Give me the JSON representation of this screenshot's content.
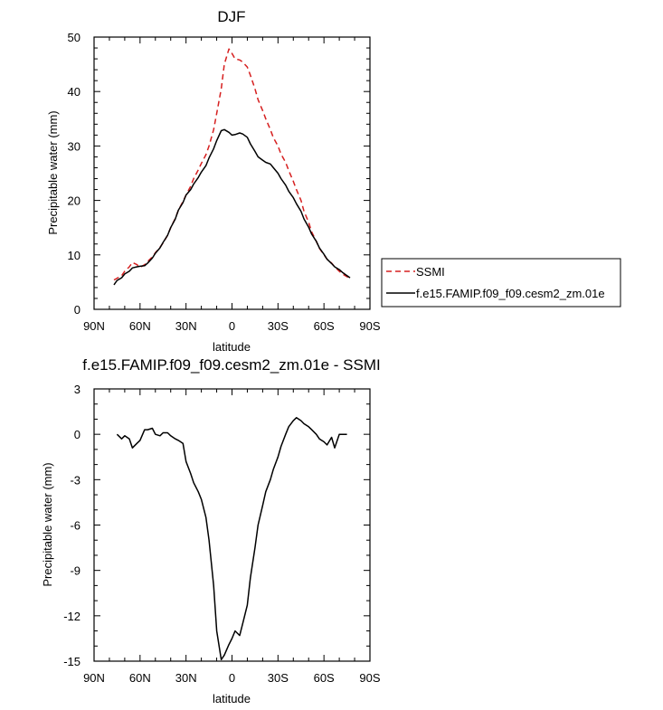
{
  "chart_data": [
    {
      "type": "line",
      "title": "DJF",
      "xlabel": "latitude",
      "ylabel": "Precipitable water (mm)",
      "xlim": [
        -90,
        90
      ],
      "ylim": [
        0,
        50
      ],
      "xticks": [
        -90,
        -60,
        -30,
        0,
        30,
        60,
        90
      ],
      "xticklabels": [
        "90N",
        "60N",
        "30N",
        "0",
        "30S",
        "60S",
        "90S"
      ],
      "yticks": [
        0,
        10,
        20,
        30,
        40,
        50
      ],
      "yticklabels": [
        "0",
        "10",
        "20",
        "30",
        "40",
        "50"
      ],
      "legend": "right-bottom",
      "grid": false,
      "series": [
        {
          "name": "SSMI",
          "color": "#d62020",
          "dash": "dashed",
          "x": [
            -77,
            -75,
            -72,
            -70,
            -67,
            -65,
            -62,
            -60,
            -57,
            -55,
            -52,
            -50,
            -47,
            -45,
            -42,
            -40,
            -37,
            -35,
            -32,
            -30,
            -27,
            -25,
            -22,
            -20,
            -17,
            -15,
            -12,
            -10,
            -7,
            -5,
            -2,
            0,
            2,
            5,
            7,
            10,
            12,
            15,
            17,
            20,
            22,
            25,
            27,
            30,
            32,
            35,
            37,
            40,
            42,
            45,
            47,
            50,
            52,
            55,
            57,
            60,
            62,
            65,
            67,
            70,
            72,
            75,
            77
          ],
          "y": [
            5.4,
            5.7,
            6.2,
            7.0,
            7.8,
            8.6,
            8.2,
            7.7,
            8.2,
            8.8,
            9.6,
            10.4,
            11.4,
            12.2,
            13.6,
            15.0,
            16.7,
            18.2,
            19.8,
            21.0,
            22.6,
            24.0,
            25.6,
            26.8,
            28.4,
            30.0,
            33.0,
            36.0,
            40.5,
            45.0,
            47.8,
            47.0,
            46.0,
            45.8,
            45.4,
            44.5,
            43.0,
            40.5,
            38.5,
            36.5,
            35.0,
            33.0,
            31.5,
            30.0,
            28.5,
            27.0,
            25.5,
            23.5,
            22.0,
            20.0,
            18.0,
            16.0,
            14.2,
            12.5,
            11.2,
            10.0,
            9.2,
            8.5,
            7.8,
            7.0,
            6.5,
            6.0,
            5.6
          ]
        },
        {
          "name": "f.e15.FAMIP.f09_f09.cesm2_zm.01e",
          "color": "#000000",
          "dash": "solid",
          "x": [
            -77,
            -75,
            -72,
            -70,
            -67,
            -65,
            -62,
            -60,
            -57,
            -55,
            -52,
            -50,
            -47,
            -45,
            -42,
            -40,
            -37,
            -35,
            -32,
            -30,
            -27,
            -25,
            -22,
            -20,
            -17,
            -15,
            -12,
            -10,
            -7,
            -5,
            -2,
            0,
            2,
            5,
            7,
            10,
            12,
            15,
            17,
            20,
            22,
            25,
            27,
            30,
            32,
            35,
            37,
            40,
            42,
            45,
            47,
            50,
            52,
            55,
            57,
            60,
            62,
            65,
            67,
            70,
            72,
            75,
            77
          ],
          "y": [
            4.5,
            5.3,
            5.8,
            6.5,
            7.0,
            7.6,
            7.8,
            7.9,
            8.0,
            8.5,
            9.4,
            10.3,
            11.3,
            12.3,
            13.6,
            15.0,
            16.6,
            18.2,
            19.6,
            21.0,
            22.0,
            23.0,
            24.2,
            25.2,
            26.4,
            27.8,
            29.5,
            31.0,
            32.8,
            33.0,
            32.5,
            32.0,
            32.1,
            32.4,
            32.2,
            31.6,
            30.4,
            29.0,
            28.0,
            27.4,
            27.0,
            26.7,
            26.0,
            25.0,
            24.0,
            22.8,
            21.7,
            20.5,
            19.4,
            18.0,
            16.6,
            15.1,
            13.8,
            12.5,
            11.3,
            10.1,
            9.2,
            8.4,
            7.8,
            7.3,
            6.8,
            6.2,
            5.8
          ]
        }
      ]
    },
    {
      "type": "line",
      "title": "f.e15.FAMIP.f09_f09.cesm2_zm.01e - SSMI",
      "xlabel": "latitude",
      "ylabel": "Precipitable water (mm)",
      "xlim": [
        -90,
        90
      ],
      "ylim": [
        -15,
        3
      ],
      "xticks": [
        -90,
        -60,
        -30,
        0,
        30,
        60,
        90
      ],
      "xticklabels": [
        "90N",
        "60N",
        "30N",
        "0",
        "30S",
        "60S",
        "90S"
      ],
      "yticks": [
        3,
        0,
        -3,
        -6,
        -9,
        -12,
        -15
      ],
      "yticklabels": [
        "3",
        "0",
        "-3",
        "-6",
        "-9",
        "-12",
        "-15"
      ],
      "grid": false,
      "series": [
        {
          "color": "#000000",
          "dash": "solid",
          "x": [
            -75,
            -72,
            -70,
            -67,
            -65,
            -62,
            -60,
            -57,
            -55,
            -52,
            -50,
            -47,
            -45,
            -42,
            -40,
            -37,
            -35,
            -32,
            -30,
            -27,
            -25,
            -22,
            -20,
            -17,
            -15,
            -12,
            -10,
            -7,
            -5,
            -2,
            0,
            2,
            5,
            7,
            10,
            12,
            15,
            17,
            20,
            22,
            25,
            27,
            30,
            32,
            35,
            37,
            40,
            42,
            45,
            47,
            50,
            52,
            55,
            57,
            60,
            62,
            65,
            67,
            70,
            72,
            75
          ],
          "y": [
            0.0,
            -0.3,
            -0.1,
            -0.3,
            -0.9,
            -0.6,
            -0.4,
            0.3,
            0.3,
            0.4,
            0.0,
            -0.1,
            0.1,
            0.1,
            -0.1,
            -0.3,
            -0.4,
            -0.6,
            -1.8,
            -2.6,
            -3.2,
            -3.8,
            -4.3,
            -5.5,
            -7.0,
            -10.0,
            -13.0,
            -14.9,
            -14.6,
            -13.9,
            -13.5,
            -13.0,
            -13.3,
            -12.5,
            -11.3,
            -9.5,
            -7.5,
            -6.0,
            -4.7,
            -3.8,
            -3.0,
            -2.3,
            -1.5,
            -0.8,
            0.0,
            0.5,
            0.9,
            1.1,
            0.9,
            0.7,
            0.5,
            0.3,
            0.0,
            -0.3,
            -0.5,
            -0.7,
            -0.2,
            -0.9,
            0.0,
            0.0,
            0.0
          ]
        }
      ]
    }
  ]
}
